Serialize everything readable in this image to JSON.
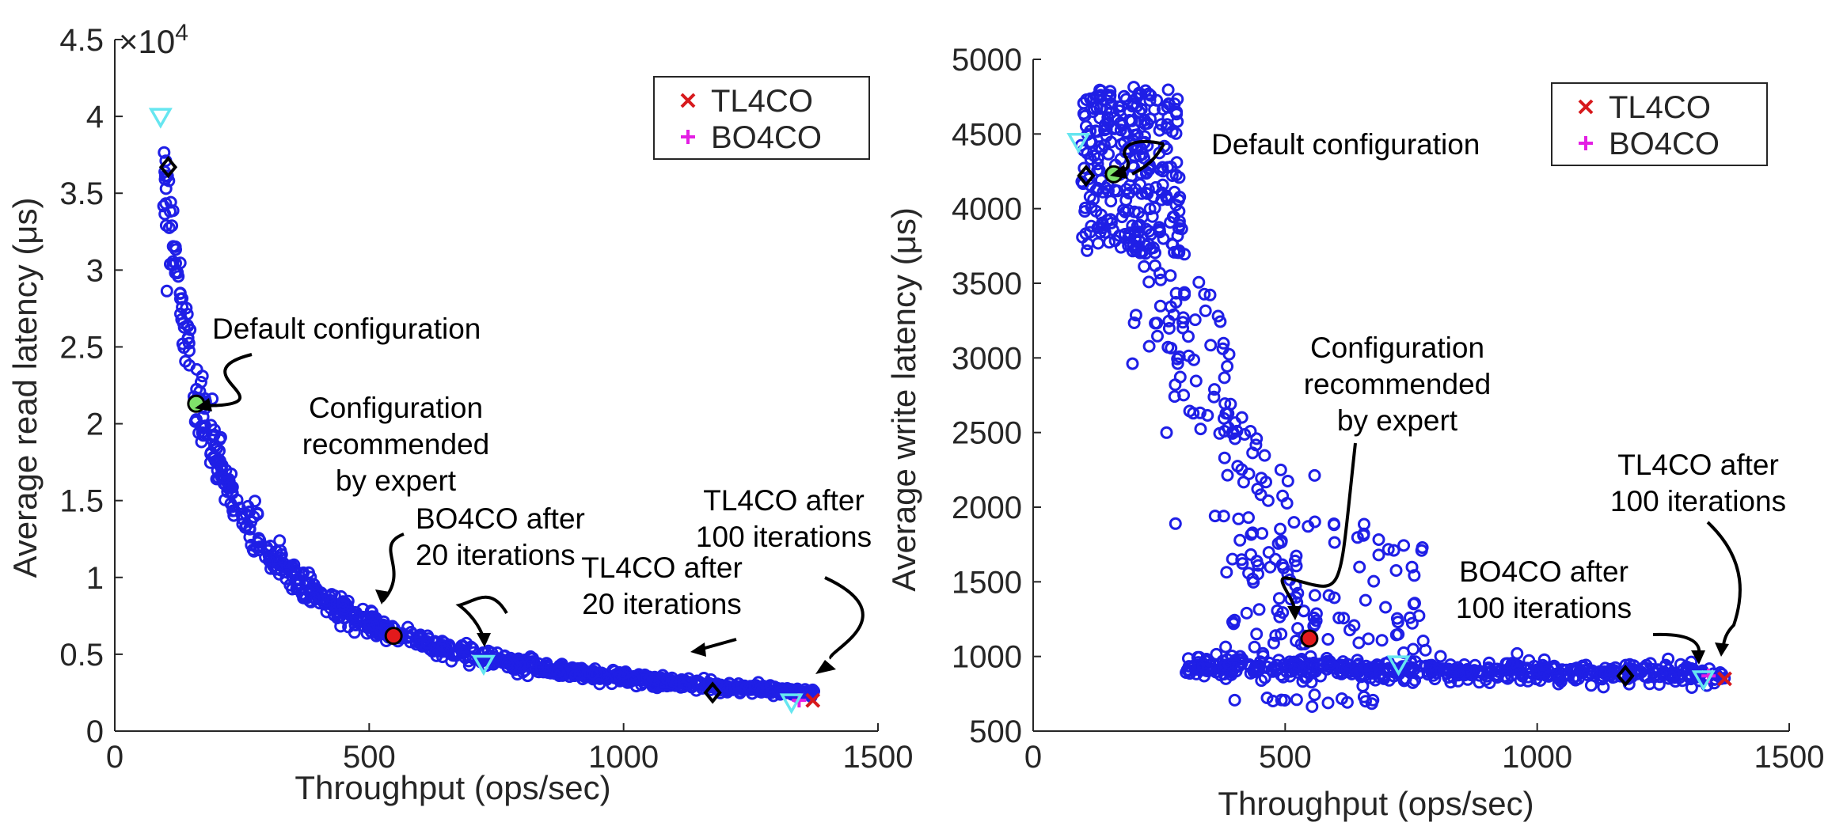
{
  "chart_data": [
    {
      "type": "scatter",
      "xlabel": "Throughput (ops/sec)",
      "ylabel": "Average read latency (μs)",
      "y_exponent_label": "×10",
      "y_exponent_power": "4",
      "xlim": [
        0,
        1500
      ],
      "ylim": [
        0,
        45000
      ],
      "xticks": [
        0,
        500,
        1000,
        1500
      ],
      "xtick_labels": [
        "0",
        "500",
        "1000",
        "1500"
      ],
      "yticks": [
        0,
        5000,
        10000,
        15000,
        20000,
        25000,
        30000,
        35000,
        40000,
        45000
      ],
      "ytick_labels": [
        "0",
        "0.5",
        "1",
        "1.5",
        "2",
        "2.5",
        "3",
        "3.5",
        "4",
        "4.5"
      ],
      "legend": {
        "placement": "top-right",
        "entries": [
          {
            "label": "TL4CO",
            "marker": "x",
            "color": "#d7191c"
          },
          {
            "label": "BO4CO",
            "marker": "+",
            "color": "#e31ee3"
          }
        ]
      },
      "markers": [
        {
          "name": "default",
          "x": 160,
          "y": 21300,
          "shape": "circle",
          "color": "#7fe26a"
        },
        {
          "name": "expert",
          "x": 548,
          "y": 6200,
          "shape": "circle",
          "color": "#e31a1c"
        },
        {
          "name": "bo4co-20",
          "x": 725,
          "y": 4400,
          "shape": "triangle",
          "color": "#66e6f0"
        },
        {
          "name": "tl4co-20",
          "x": 1175,
          "y": 2500,
          "shape": "diamond",
          "color": "#000000"
        },
        {
          "name": "tl4co-100",
          "x": 1372,
          "y": 2000,
          "shape": "x",
          "color": "#d7191c"
        },
        {
          "name": "bo4co-100",
          "x": 1345,
          "y": 2000,
          "shape": "plus",
          "color": "#e31ee3"
        },
        {
          "name": "start-triangle-1",
          "x": 90,
          "y": 40000,
          "shape": "triangle",
          "color": "#66e6f0"
        },
        {
          "name": "start-diamond-1",
          "x": 105,
          "y": 36700,
          "shape": "diamond",
          "color": "#000000"
        },
        {
          "name": "end-triangle-1",
          "x": 1330,
          "y": 1900,
          "shape": "triangle",
          "color": "#66e6f0"
        }
      ],
      "annotations": [
        {
          "lines": [
            "Default configuration"
          ]
        },
        {
          "lines": [
            "Configuration",
            "recommended",
            "by expert"
          ]
        },
        {
          "lines": [
            "BO4CO after",
            "20 iterations"
          ]
        },
        {
          "lines": [
            "TL4CO after",
            "20 iterations"
          ]
        },
        {
          "lines": [
            "TL4CO after",
            "100 iterations"
          ]
        }
      ]
    },
    {
      "type": "scatter",
      "xlabel": "Throughput (ops/sec)",
      "ylabel": "Average write latency (μs)",
      "xlim": [
        0,
        1500
      ],
      "ylim": [
        500,
        5000
      ],
      "xticks": [
        0,
        500,
        1000,
        1500
      ],
      "xtick_labels": [
        "0",
        "500",
        "1000",
        "1500"
      ],
      "yticks": [
        500,
        1000,
        1500,
        2000,
        2500,
        3000,
        3500,
        4000,
        4500,
        5000
      ],
      "ytick_labels": [
        "500",
        "1000",
        "1500",
        "2000",
        "2500",
        "3000",
        "3500",
        "4000",
        "4500",
        "5000"
      ],
      "legend": {
        "placement": "top-right",
        "entries": [
          {
            "label": "TL4CO",
            "marker": "x",
            "color": "#d7191c"
          },
          {
            "label": "BO4CO",
            "marker": "+",
            "color": "#e31ee3"
          }
        ]
      },
      "markers": [
        {
          "name": "default",
          "x": 160,
          "y": 4230,
          "shape": "circle",
          "color": "#7fe26a"
        },
        {
          "name": "expert",
          "x": 548,
          "y": 1120,
          "shape": "circle",
          "color": "#e31a1c"
        },
        {
          "name": "bo4co-20",
          "x": 725,
          "y": 950,
          "shape": "triangle",
          "color": "#66e6f0"
        },
        {
          "name": "tl4co-20",
          "x": 1175,
          "y": 870,
          "shape": "diamond",
          "color": "#000000"
        },
        {
          "name": "tl4co-100",
          "x": 1372,
          "y": 850,
          "shape": "x",
          "color": "#d7191c"
        },
        {
          "name": "bo4co-100",
          "x": 1340,
          "y": 870,
          "shape": "plus",
          "color": "#e31ee3"
        },
        {
          "name": "start-triangle-2",
          "x": 90,
          "y": 4450,
          "shape": "triangle",
          "color": "#66e6f0"
        },
        {
          "name": "start-diamond-2",
          "x": 105,
          "y": 4220,
          "shape": "diamond",
          "color": "#000000"
        },
        {
          "name": "end-triangle-2",
          "x": 1330,
          "y": 850,
          "shape": "triangle",
          "color": "#66e6f0"
        }
      ],
      "annotations": [
        {
          "lines": [
            "Default configuration"
          ]
        },
        {
          "lines": [
            "Configuration",
            "recommended",
            "by expert"
          ]
        },
        {
          "lines": [
            "BO4CO after",
            "100 iterations"
          ]
        },
        {
          "lines": [
            "TL4CO after",
            "100 iterations"
          ]
        }
      ]
    }
  ]
}
